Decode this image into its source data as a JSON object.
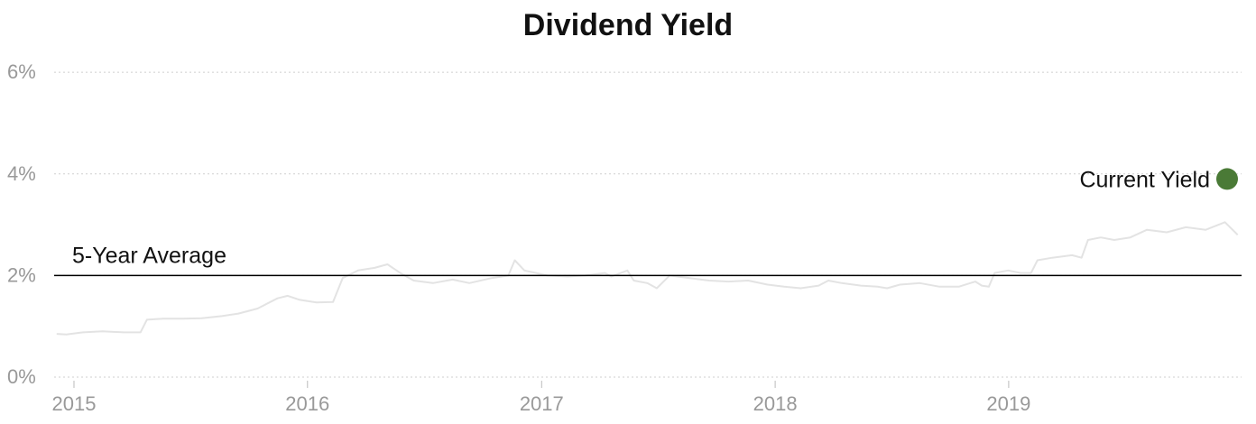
{
  "chart_data": {
    "type": "line",
    "title": "Dividend Yield",
    "xlabel": "",
    "ylabel": "",
    "x_ticks": [
      "2015",
      "2016",
      "2017",
      "2018",
      "2019"
    ],
    "y_ticks": [
      "0%",
      "2%",
      "4%",
      "6%"
    ],
    "xlim": [
      "2014-12-01",
      "2019-12-31"
    ],
    "ylim": [
      0,
      6.5
    ],
    "grid": "horizontal-dotted",
    "series": [
      {
        "values_unit": "%",
        "color": "#e3e3e3",
        "points": [
          [
            "2014-12-05",
            0.85
          ],
          [
            "2014-12-20",
            0.84
          ],
          [
            "2015-01-15",
            0.88
          ],
          [
            "2015-02-15",
            0.9
          ],
          [
            "2015-03-20",
            0.88
          ],
          [
            "2015-04-15",
            0.88
          ],
          [
            "2015-04-25",
            1.13
          ],
          [
            "2015-05-20",
            1.15
          ],
          [
            "2015-06-20",
            1.15
          ],
          [
            "2015-07-20",
            1.16
          ],
          [
            "2015-08-20",
            1.2
          ],
          [
            "2015-09-15",
            1.25
          ],
          [
            "2015-10-15",
            1.35
          ],
          [
            "2015-11-15",
            1.55
          ],
          [
            "2015-12-01",
            1.6
          ],
          [
            "2015-12-20",
            1.52
          ],
          [
            "2016-01-15",
            1.47
          ],
          [
            "2016-02-10",
            1.48
          ],
          [
            "2016-02-25",
            1.95
          ],
          [
            "2016-03-20",
            2.1
          ],
          [
            "2016-04-15",
            2.15
          ],
          [
            "2016-05-05",
            2.22
          ],
          [
            "2016-05-25",
            2.05
          ],
          [
            "2016-06-15",
            1.9
          ],
          [
            "2016-07-15",
            1.85
          ],
          [
            "2016-08-15",
            1.92
          ],
          [
            "2016-09-10",
            1.85
          ],
          [
            "2016-10-15",
            1.95
          ],
          [
            "2016-11-10",
            2.0
          ],
          [
            "2016-11-20",
            2.3
          ],
          [
            "2016-12-05",
            2.1
          ],
          [
            "2017-01-10",
            2.0
          ],
          [
            "2017-02-10",
            1.98
          ],
          [
            "2017-03-10",
            2.0
          ],
          [
            "2017-04-10",
            2.05
          ],
          [
            "2017-04-20",
            1.98
          ],
          [
            "2017-05-15",
            2.1
          ],
          [
            "2017-05-25",
            1.9
          ],
          [
            "2017-06-15",
            1.85
          ],
          [
            "2017-06-30",
            1.75
          ],
          [
            "2017-07-20",
            2.0
          ],
          [
            "2017-08-20",
            1.95
          ],
          [
            "2017-09-20",
            1.9
          ],
          [
            "2017-10-20",
            1.88
          ],
          [
            "2017-11-20",
            1.9
          ],
          [
            "2017-12-20",
            1.82
          ],
          [
            "2018-01-15",
            1.78
          ],
          [
            "2018-02-10",
            1.75
          ],
          [
            "2018-03-10",
            1.8
          ],
          [
            "2018-03-25",
            1.9
          ],
          [
            "2018-04-15",
            1.85
          ],
          [
            "2018-05-15",
            1.8
          ],
          [
            "2018-06-10",
            1.78
          ],
          [
            "2018-06-25",
            1.75
          ],
          [
            "2018-07-15",
            1.82
          ],
          [
            "2018-08-15",
            1.85
          ],
          [
            "2018-09-15",
            1.78
          ],
          [
            "2018-10-15",
            1.78
          ],
          [
            "2018-11-10",
            1.88
          ],
          [
            "2018-11-20",
            1.8
          ],
          [
            "2018-12-01",
            1.78
          ],
          [
            "2018-12-10",
            2.05
          ],
          [
            "2018-12-31",
            2.1
          ],
          [
            "2019-01-20",
            2.05
          ],
          [
            "2019-02-05",
            2.05
          ],
          [
            "2019-02-15",
            2.3
          ],
          [
            "2019-03-10",
            2.35
          ],
          [
            "2019-04-10",
            2.4
          ],
          [
            "2019-04-25",
            2.35
          ],
          [
            "2019-05-05",
            2.7
          ],
          [
            "2019-05-25",
            2.75
          ],
          [
            "2019-06-15",
            2.7
          ],
          [
            "2019-07-10",
            2.75
          ],
          [
            "2019-08-05",
            2.9
          ],
          [
            "2019-09-05",
            2.85
          ],
          [
            "2019-10-05",
            2.95
          ],
          [
            "2019-11-05",
            2.9
          ],
          [
            "2019-12-05",
            3.05
          ],
          [
            "2019-12-25",
            2.8
          ]
        ]
      }
    ],
    "reference_line": {
      "label": "5-Year Average",
      "value": 2.0,
      "color": "#000000"
    },
    "current_marker": {
      "label": "Current Yield",
      "value": 3.9,
      "color": "#4a7a36"
    }
  }
}
